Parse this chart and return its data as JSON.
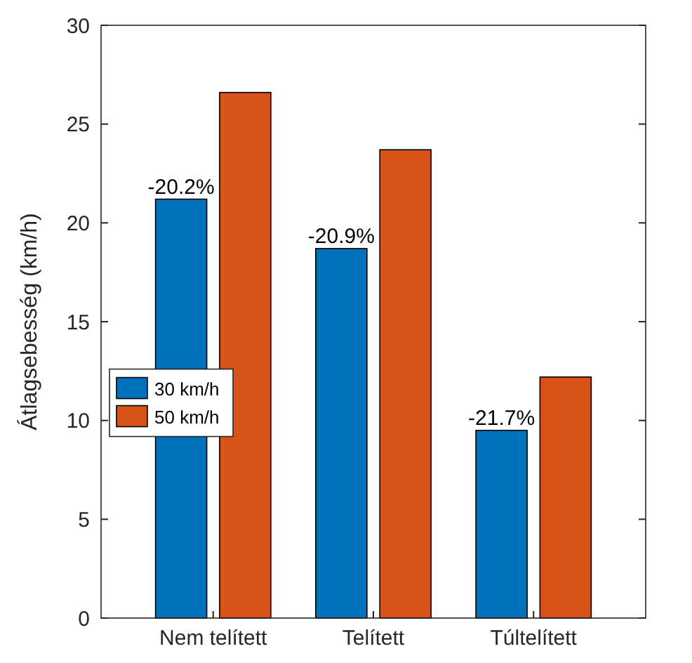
{
  "chart_data": {
    "type": "bar",
    "ylabel": "Átlagsebesség (km/h)",
    "categories": [
      "Nem telített",
      "Telített",
      "Túltelített"
    ],
    "series": [
      {
        "name": "30 km/h",
        "color": "#0072bd",
        "values": [
          21.2,
          18.7,
          9.5
        ]
      },
      {
        "name": "50 km/h",
        "color": "#d95319",
        "values": [
          26.6,
          23.7,
          12.2
        ]
      }
    ],
    "ylim": [
      0,
      30
    ],
    "yticks": [
      0,
      5,
      10,
      15,
      20,
      25,
      30
    ],
    "grid": false,
    "legend": "left",
    "annotations": [
      {
        "text": "-20.2%",
        "x": "Nem telített",
        "y": 21.2
      },
      {
        "text": "-20.9%",
        "x": "Telített",
        "y": 18.7
      },
      {
        "text": "-21.7%",
        "x": "Túltelített",
        "y": 9.5
      }
    ]
  }
}
